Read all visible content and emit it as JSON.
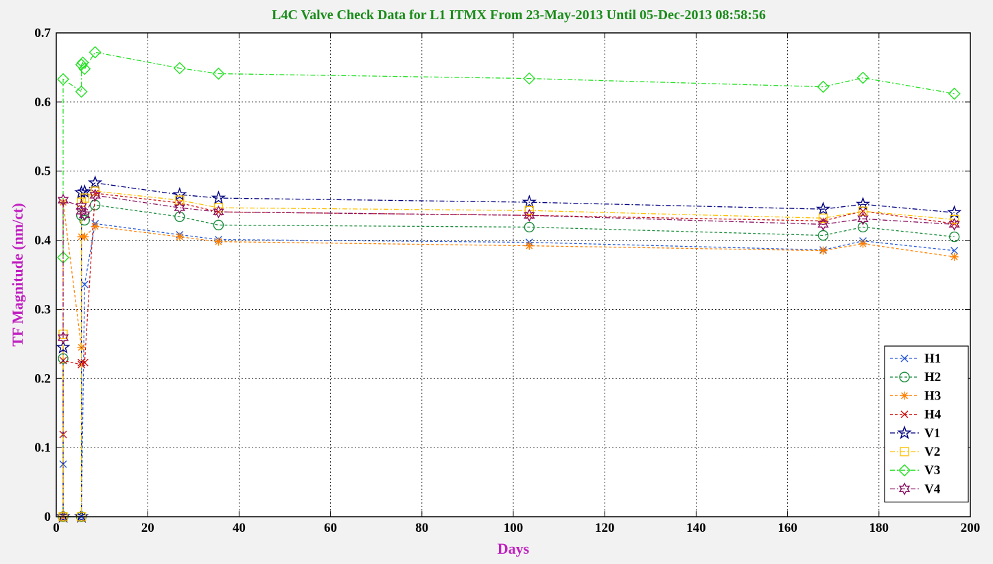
{
  "chart_data": {
    "type": "line",
    "title": "L4C Valve Check Data for L1 ITMX From 23-May-2013 Until 05-Dec-2013 08:58:56",
    "xlabel": "Days",
    "ylabel": "TF Magnitude (nm/ct)",
    "xlim": [
      0,
      200
    ],
    "ylim": [
      0,
      0.7
    ],
    "xticks": [
      0,
      20,
      40,
      60,
      80,
      100,
      120,
      140,
      160,
      180,
      200
    ],
    "yticks": [
      0,
      0.1,
      0.2,
      0.3,
      0.4,
      0.5,
      0.6,
      0.7
    ],
    "ytick_labels": [
      "0",
      "0.1",
      "0.2",
      "0.3",
      "0.4",
      "0.5",
      "0.6",
      "0.7"
    ],
    "grid": true,
    "legend_position": "bottom-right",
    "colors": {
      "title": "#1a8c1a",
      "axis_label": "#c020c0",
      "background": "#f2f2f2",
      "plot_background": "#ffffff"
    },
    "series": [
      {
        "name": "H1",
        "color": "#2a5bd7",
        "marker": "x",
        "dash": "4,3",
        "x": [
          1.5,
          1.5,
          5.5,
          5.5,
          6.2,
          8.5,
          27,
          35.5,
          103.5,
          167.8,
          176.5,
          196.5
        ],
        "y": [
          0.076,
          0.0,
          0.0,
          0.0,
          0.336,
          0.424,
          0.408,
          0.401,
          0.397,
          0.386,
          0.399,
          0.385
        ]
      },
      {
        "name": "H2",
        "color": "#1a8c3c",
        "marker": "o",
        "dash": "4,3",
        "x": [
          1.5,
          1.5,
          5.5,
          5.5,
          6.2,
          8.5,
          27,
          35.5,
          103.5,
          167.8,
          176.5,
          196.5
        ],
        "y": [
          0.229,
          0.0,
          0.0,
          0.436,
          0.429,
          0.451,
          0.434,
          0.422,
          0.419,
          0.407,
          0.419,
          0.405
        ]
      },
      {
        "name": "H3",
        "color": "#ff8000",
        "marker": "*",
        "dash": "4,3",
        "x": [
          1.5,
          1.5,
          5.5,
          5.5,
          6.2,
          8.5,
          27,
          35.5,
          103.5,
          167.8,
          176.5,
          196.5
        ],
        "y": [
          0.0,
          0.455,
          0.245,
          0.405,
          0.405,
          0.42,
          0.405,
          0.398,
          0.392,
          0.385,
          0.395,
          0.376
        ]
      },
      {
        "name": "H4",
        "color": "#d01010",
        "marker": "x",
        "dash": "4,3",
        "x": [
          1.5,
          1.5,
          5.5,
          5.5,
          6.2,
          8.5,
          27,
          35.5,
          103.5,
          167.8,
          176.5,
          196.5
        ],
        "y": [
          0.119,
          0.226,
          0.22,
          0.223,
          0.223,
          0.468,
          0.454,
          0.441,
          0.436,
          0.428,
          0.442,
          0.424
        ]
      },
      {
        "name": "V1",
        "color": "#000080",
        "marker": "pentagram",
        "dash": "7,3,2,3",
        "x": [
          1.5,
          1.5,
          5.5,
          5.5,
          6.2,
          8.5,
          27,
          35.5,
          103.5,
          167.8,
          176.5,
          196.5
        ],
        "y": [
          0.245,
          0.0,
          0.0,
          0.469,
          0.47,
          0.483,
          0.466,
          0.461,
          0.455,
          0.445,
          0.452,
          0.44
        ]
      },
      {
        "name": "V2",
        "color": "#ffc000",
        "marker": "s",
        "dash": "7,3,2,3",
        "x": [
          1.5,
          1.5,
          5.5,
          5.5,
          6.2,
          8.5,
          27,
          35.5,
          103.5,
          167.8,
          176.5,
          196.5
        ],
        "y": [
          0.264,
          0.0,
          0.0,
          0.455,
          0.461,
          0.471,
          0.458,
          0.447,
          0.443,
          0.432,
          0.442,
          0.43
        ]
      },
      {
        "name": "V3",
        "color": "#22e022",
        "marker": "d",
        "dash": "7,3,2,3",
        "x": [
          1.5,
          1.5,
          5.5,
          5.5,
          5.8,
          6.2,
          8.5,
          27,
          35.5,
          103.5,
          167.8,
          176.5,
          196.5
        ],
        "y": [
          0.375,
          0.633,
          0.615,
          0.654,
          0.657,
          0.648,
          0.672,
          0.649,
          0.641,
          0.634,
          0.622,
          0.635,
          0.612
        ]
      },
      {
        "name": "V4",
        "color": "#8a1060",
        "marker": "hexagram",
        "dash": "7,3,2,3",
        "x": [
          1.5,
          1.5,
          5.5,
          5.5,
          6.2,
          8.5,
          27,
          35.5,
          103.5,
          167.8,
          176.5,
          196.5
        ],
        "y": [
          0.259,
          0.458,
          0.449,
          0.442,
          0.437,
          0.465,
          0.447,
          0.441,
          0.436,
          0.423,
          0.431,
          0.423
        ]
      }
    ]
  }
}
